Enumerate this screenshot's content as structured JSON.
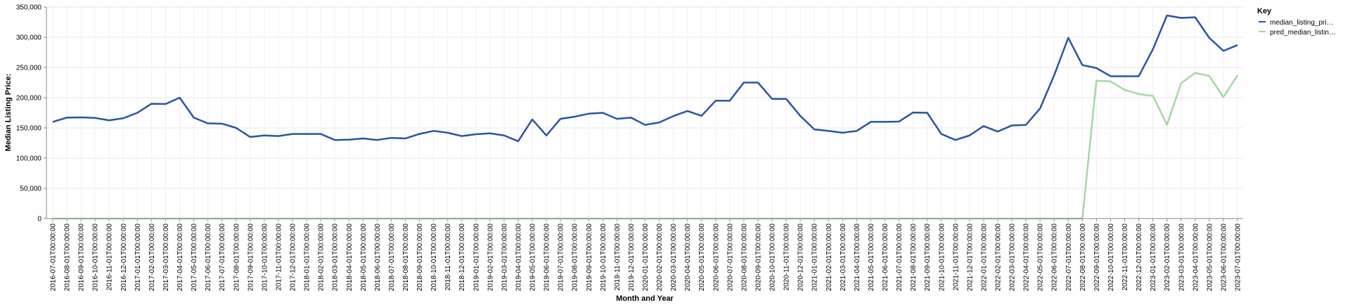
{
  "chart_data": {
    "type": "line",
    "xlabel": "Month and Year",
    "ylabel": "Median Listing Price:",
    "ylim": [
      0,
      350000
    ],
    "yticks": [
      "0",
      "50,000",
      "100,000",
      "150,000",
      "200,000",
      "250,000",
      "300,000",
      "350,000"
    ],
    "grid": true,
    "legend": {
      "title": "Key",
      "placement": "right"
    },
    "x": [
      "2016-07-01T00:00:00",
      "2016-08-01T00:00:00",
      "2016-09-01T00:00:00",
      "2016-10-01T00:00:00",
      "2016-11-01T00:00:00",
      "2016-12-01T00:00:00",
      "2017-01-01T00:00:00",
      "2017-02-01T00:00:00",
      "2017-03-01T00:00:00",
      "2017-04-01T00:00:00",
      "2017-05-01T00:00:00",
      "2017-06-01T00:00:00",
      "2017-07-01T00:00:00",
      "2017-08-01T00:00:00",
      "2017-09-01T00:00:00",
      "2017-10-01T00:00:00",
      "2017-11-01T00:00:00",
      "2017-12-01T00:00:00",
      "2018-01-01T00:00:00",
      "2018-02-01T00:00:00",
      "2018-03-01T00:00:00",
      "2018-04-01T00:00:00",
      "2018-05-01T00:00:00",
      "2018-06-01T00:00:00",
      "2018-07-01T00:00:00",
      "2018-08-01T00:00:00",
      "2018-09-01T00:00:00",
      "2018-10-01T00:00:00",
      "2018-11-01T00:00:00",
      "2018-12-01T00:00:00",
      "2019-01-01T00:00:00",
      "2019-02-01T00:00:00",
      "2019-03-01T00:00:00",
      "2019-04-01T00:00:00",
      "2019-05-01T00:00:00",
      "2019-06-01T00:00:00",
      "2019-07-01T00:00:00",
      "2019-08-01T00:00:00",
      "2019-09-01T00:00:00",
      "2019-10-01T00:00:00",
      "2019-11-01T00:00:00",
      "2019-12-01T00:00:00",
      "2020-01-01T00:00:00",
      "2020-02-01T00:00:00",
      "2020-03-01T00:00:00",
      "2020-04-01T00:00:00",
      "2020-05-01T00:00:00",
      "2020-06-01T00:00:00",
      "2020-07-01T00:00:00",
      "2020-08-01T00:00:00",
      "2020-09-01T00:00:00",
      "2020-10-01T00:00:00",
      "2020-11-01T00:00:00",
      "2020-12-01T00:00:00",
      "2021-01-01T00:00:00",
      "2021-02-01T00:00:00",
      "2021-03-01T00:00:00",
      "2021-04-01T00:00:00",
      "2021-05-01T00:00:00",
      "2021-06-01T00:00:00",
      "2021-07-01T00:00:00",
      "2021-08-01T00:00:00",
      "2021-09-01T00:00:00",
      "2021-10-01T00:00:00",
      "2021-11-01T00:00:00",
      "2021-12-01T00:00:00",
      "2022-01-01T00:00:00",
      "2022-02-01T00:00:00",
      "2022-03-01T00:00:00",
      "2022-04-01T00:00:00",
      "2022-05-01T00:00:00",
      "2022-06-01T00:00:00",
      "2022-07-01T00:00:00",
      "2022-08-01T00:00:00",
      "2022-09-01T00:00:00",
      "2022-10-01T00:00:00",
      "2022-11-01T00:00:00",
      "2022-12-01T00:00:00",
      "2023-01-01T00:00:00",
      "2023-02-01T00:00:00",
      "2023-03-01T00:00:00",
      "2023-04-01T00:00:00",
      "2023-05-01T00:00:00",
      "2023-06-01T00:00:00",
      "2023-07-01T00:00:00"
    ],
    "series": [
      {
        "name": "median_listing_pri…",
        "color": "#2a55a0",
        "values": [
          160000,
          167000,
          167500,
          166500,
          162500,
          166000,
          175000,
          190000,
          189500,
          200000,
          167000,
          157500,
          157000,
          150000,
          135000,
          137500,
          136500,
          140000,
          140000,
          140000,
          130000,
          130500,
          132500,
          130000,
          133500,
          132500,
          140000,
          145000,
          142000,
          136500,
          139500,
          141000,
          137500,
          128000,
          164000,
          137500,
          165000,
          168500,
          173500,
          175000,
          165000,
          167000,
          155000,
          159000,
          169500,
          178000,
          170000,
          195000,
          195000,
          225000,
          225000,
          198000,
          198000,
          170000,
          147500,
          145000,
          142000,
          145000,
          160000,
          160000,
          160500,
          175500,
          175000,
          140000,
          130000,
          137500,
          153000,
          144000,
          154000,
          155000,
          182000,
          237000,
          299000,
          254000,
          249000,
          235500,
          235500,
          235500,
          280000,
          336000,
          332000,
          333000,
          299000,
          277500,
          287000
        ]
      },
      {
        "name": "pred_median_listin…",
        "color": "#a3d9a0",
        "values": [
          0,
          0,
          0,
          0,
          0,
          0,
          0,
          0,
          0,
          0,
          0,
          0,
          0,
          0,
          0,
          0,
          0,
          0,
          0,
          0,
          0,
          0,
          0,
          0,
          0,
          0,
          0,
          0,
          0,
          0,
          0,
          0,
          0,
          0,
          0,
          0,
          0,
          0,
          0,
          0,
          0,
          0,
          0,
          0,
          0,
          0,
          0,
          0,
          0,
          0,
          0,
          0,
          0,
          0,
          0,
          0,
          0,
          0,
          0,
          0,
          0,
          0,
          0,
          0,
          0,
          0,
          0,
          0,
          0,
          0,
          0,
          0,
          0,
          0,
          228000,
          227000,
          213000,
          206000,
          203000,
          155000,
          224000,
          241000,
          236000,
          201000,
          237000
        ]
      }
    ]
  }
}
